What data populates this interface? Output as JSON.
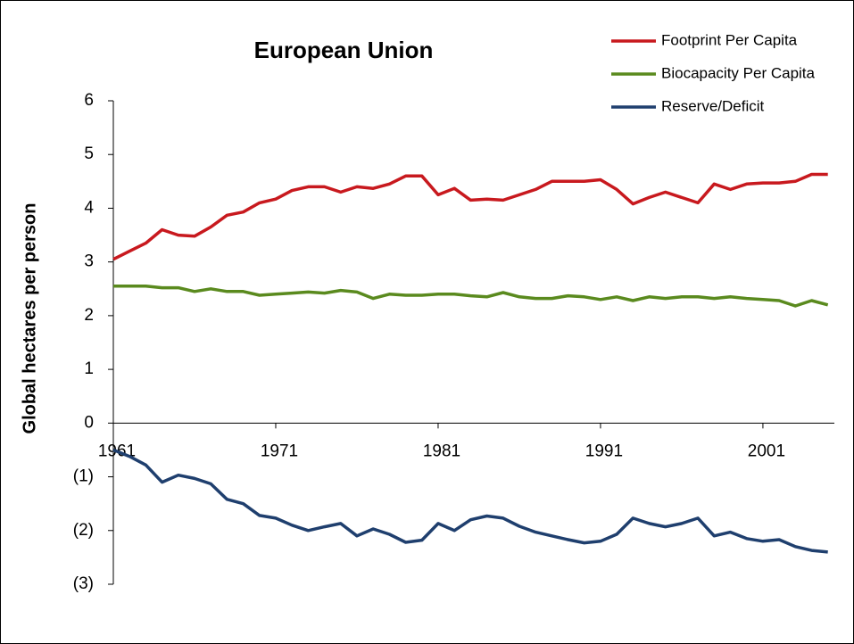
{
  "chart_data": {
    "type": "line",
    "title": "European Union",
    "y_label": "Global hectares per person",
    "x": [
      1961,
      1962,
      1963,
      1964,
      1965,
      1966,
      1967,
      1968,
      1969,
      1970,
      1971,
      1972,
      1973,
      1974,
      1975,
      1976,
      1977,
      1978,
      1979,
      1980,
      1981,
      1982,
      1983,
      1984,
      1985,
      1986,
      1987,
      1988,
      1989,
      1990,
      1991,
      1992,
      1993,
      1994,
      1995,
      1996,
      1997,
      1998,
      1999,
      2000,
      2001,
      2002,
      2003,
      2004,
      2005
    ],
    "series": [
      {
        "name": "Footprint Per Capita",
        "color": "#c8191e",
        "values": [
          3.05,
          3.2,
          3.35,
          3.6,
          3.5,
          3.48,
          3.65,
          3.87,
          3.93,
          4.1,
          4.17,
          4.33,
          4.4,
          4.4,
          4.3,
          4.4,
          4.37,
          4.45,
          4.6,
          4.6,
          4.25,
          4.37,
          4.15,
          4.17,
          4.15,
          4.25,
          4.35,
          4.5,
          4.5,
          4.5,
          4.53,
          4.35,
          4.08,
          4.2,
          4.3,
          4.2,
          4.1,
          4.45,
          4.35,
          4.45,
          4.47,
          4.47,
          4.5,
          4.63,
          4.63
        ]
      },
      {
        "name": "Biocapacity Per Capita",
        "color": "#5a8a1e",
        "values": [
          2.55,
          2.55,
          2.55,
          2.52,
          2.52,
          2.45,
          2.5,
          2.45,
          2.45,
          2.38,
          2.4,
          2.42,
          2.44,
          2.42,
          2.47,
          2.44,
          2.32,
          2.4,
          2.38,
          2.38,
          2.4,
          2.4,
          2.37,
          2.35,
          2.43,
          2.35,
          2.32,
          2.32,
          2.37,
          2.35,
          2.3,
          2.35,
          2.28,
          2.35,
          2.32,
          2.35,
          2.35,
          2.32,
          2.35,
          2.32,
          2.3,
          2.28,
          2.18,
          2.28,
          2.2
        ]
      },
      {
        "name": "Reserve/Deficit",
        "color": "#1f3f6e",
        "values": [
          -0.5,
          -0.62,
          -0.78,
          -1.1,
          -0.97,
          -1.03,
          -1.13,
          -1.42,
          -1.5,
          -1.72,
          -1.77,
          -1.9,
          -2.0,
          -1.93,
          -1.87,
          -2.1,
          -1.97,
          -2.07,
          -2.22,
          -2.18,
          -1.87,
          -2.0,
          -1.8,
          -1.73,
          -1.77,
          -1.92,
          -2.03,
          -2.1,
          -2.17,
          -2.23,
          -2.2,
          -2.07,
          -1.77,
          -1.87,
          -1.93,
          -1.87,
          -1.77,
          -2.1,
          -2.03,
          -2.15,
          -2.2,
          -2.17,
          -2.3,
          -2.37,
          -2.4
        ]
      }
    ],
    "xlim": [
      1961,
      2005.4
    ],
    "xticks": [
      1961,
      1971,
      1981,
      1991,
      2001
    ],
    "ylim": [
      -3,
      6
    ],
    "yticks": [
      {
        "value": -3,
        "label": "(3)"
      },
      {
        "value": -2,
        "label": "(2)"
      },
      {
        "value": -1,
        "label": "(1)"
      },
      0,
      1,
      2,
      3,
      4,
      5,
      6
    ],
    "grid": false,
    "legend": "top-right"
  }
}
